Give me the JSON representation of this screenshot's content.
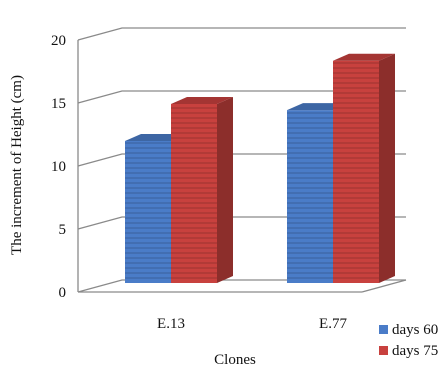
{
  "chart_data": {
    "type": "bar",
    "title": "",
    "xlabel": "Clones",
    "ylabel": "The increment of Height (cm)",
    "ylim": [
      0,
      20
    ],
    "yticks": [
      "0",
      "5",
      "10",
      "15",
      "20"
    ],
    "categories": [
      "E.13",
      "E.77"
    ],
    "series": [
      {
        "name": "days 60",
        "values": [
          11.5,
          14.0
        ]
      },
      {
        "name": "days 75",
        "values": [
          14.5,
          18.0
        ]
      }
    ],
    "colors": {
      "days 60": "#4a7cc8",
      "days 75": "#c8413e"
    },
    "grid": true,
    "legend": "bottom-right",
    "style": "3d"
  }
}
